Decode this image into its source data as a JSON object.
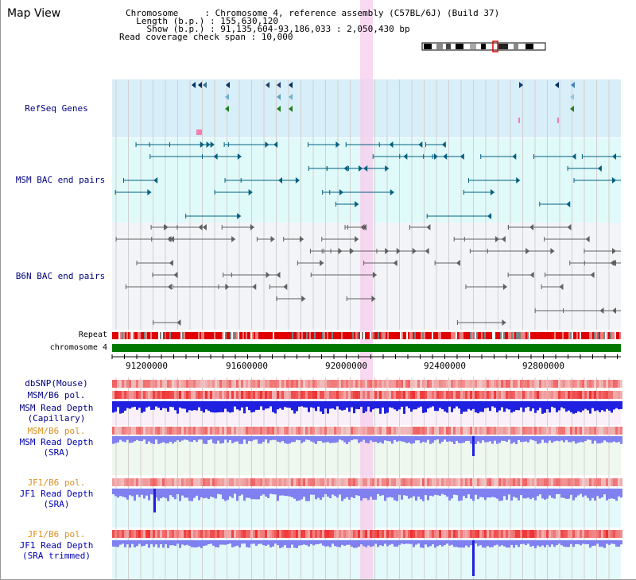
{
  "header": {
    "title": "Map View",
    "info_lines": [
      "Chromosome     : Chromosome 4, reference assembly (C57BL/6J) (Build 37)",
      "  Length (b.p.) : 155,630,120",
      "    Show (b.p.) : 91,135,604-93,186,033 : 2,050,430 bp",
      "Read coverage check span : 10,000"
    ]
  },
  "tracks": {
    "refseq": "RefSeq Genes",
    "msm_bac": "MSM BAC end pairs",
    "b6n_bac": "B6N BAC end pairs",
    "repeat": "Repeat",
    "chromosome": "chromosome 4",
    "dbsnp": "dbSNP(Mouse)",
    "msm_b6_pol": "MSM/B6 pol.",
    "msm_depth_cap_1": "MSM Read Depth",
    "msm_depth_cap_2": "(Capillary)",
    "msm_b6_pol_2": "MSM/B6 pol.",
    "msm_depth_sra_1": "MSM Read Depth",
    "msm_depth_sra_2": "(SRA)",
    "jf1_b6_pol": "JF1/B6 pol.",
    "jf1_depth_sra_1": "JF1 Read Depth",
    "jf1_depth_sra_2": "(SRA)",
    "jf1_b6_pol_2": "JF1/B6 pol.",
    "jf1_depth_trim_1": "JF1 Read Depth",
    "jf1_depth_trim_2": "(SRA trimmed)"
  },
  "axis": {
    "ticks": [
      "91200000",
      "91600000",
      "92000000",
      "92400000",
      "92800000"
    ]
  },
  "colors": {
    "refseq_bg": "#d8eef8",
    "msm_bg": "#e0fafa",
    "b6n_bg": "#f2f4f8",
    "highlight": "#f6d0ee",
    "chromosome": "#007800",
    "depth_blue": "#2020e0",
    "depth_light": "#8080f0"
  }
}
